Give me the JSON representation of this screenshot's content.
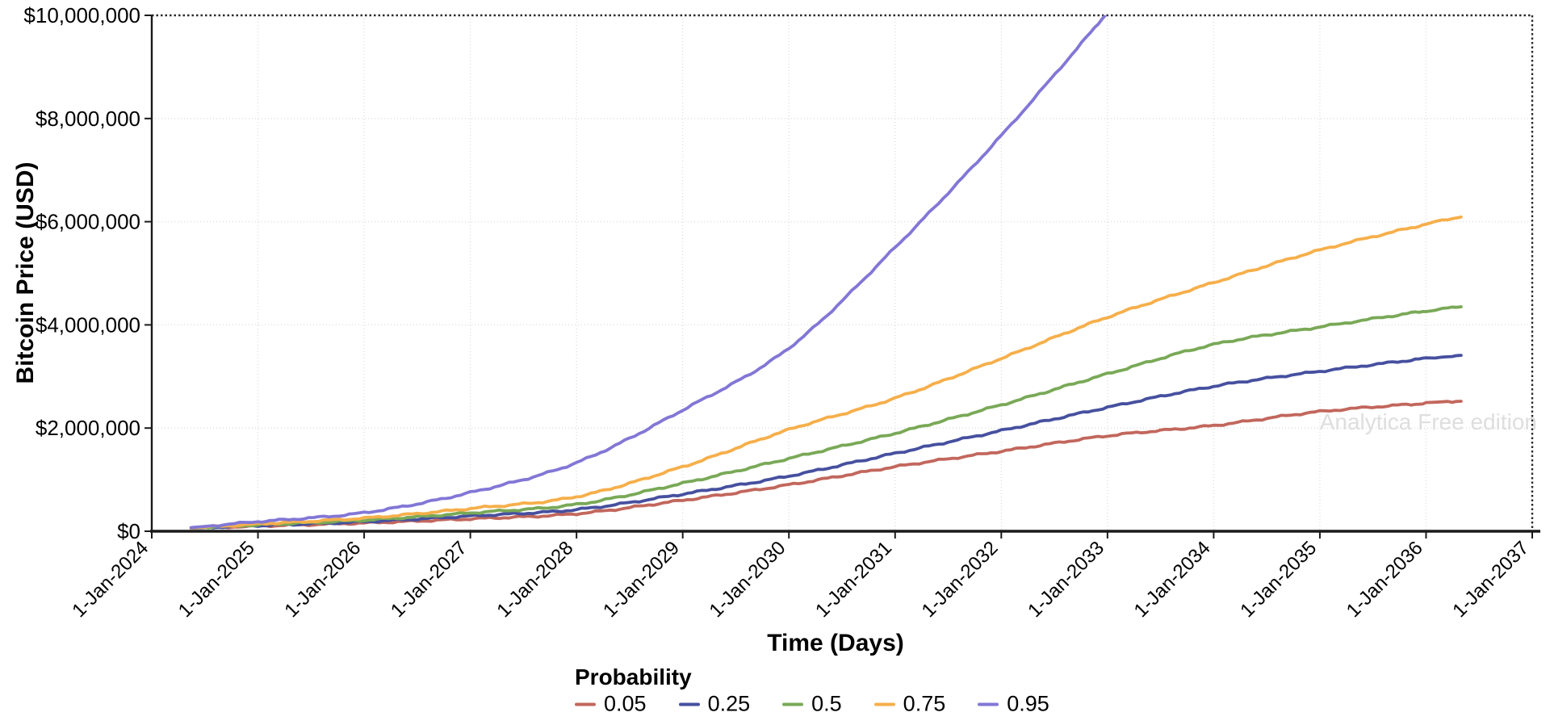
{
  "chart_data": {
    "type": "line",
    "title": "",
    "xlabel": "Time (Days)",
    "ylabel": "Bitcoin Price (USD)",
    "legend_title": "Probability",
    "legend_position": "bottom",
    "watermark": "Analytica Free edition",
    "grid": true,
    "xlim_years": [
      2024,
      2037
    ],
    "ylim": [
      0,
      10000000
    ],
    "x_ticks": [
      "1-Jan-2024",
      "1-Jan-2025",
      "1-Jan-2026",
      "1-Jan-2027",
      "1-Jan-2028",
      "1-Jan-2029",
      "1-Jan-2030",
      "1-Jan-2031",
      "1-Jan-2032",
      "1-Jan-2033",
      "1-Jan-2034",
      "1-Jan-2035",
      "1-Jan-2036",
      "1-Jan-2037"
    ],
    "y_ticks": [
      {
        "value": 0,
        "label": "$0"
      },
      {
        "value": 2000000,
        "label": "$2,000,000"
      },
      {
        "value": 4000000,
        "label": "$4,000,000"
      },
      {
        "value": 6000000,
        "label": "$6,000,000"
      },
      {
        "value": 8000000,
        "label": "$8,000,000"
      },
      {
        "value": 10000000,
        "label": "$10,000,000"
      }
    ],
    "colors": {
      "grid": "#dcdcdc",
      "axis": "#1a1a1a",
      "border_dotted": "#2a2a2a",
      "text": "#000000",
      "watermark": "#dedede"
    },
    "series": [
      {
        "name": "0.05",
        "color": "#c2675d",
        "points": [
          [
            2024.37,
            60000
          ],
          [
            2025,
            100000
          ],
          [
            2026,
            160000
          ],
          [
            2027,
            240000
          ],
          [
            2028,
            340000
          ],
          [
            2029,
            600000
          ],
          [
            2030,
            900000
          ],
          [
            2031,
            1250000
          ],
          [
            2032,
            1550000
          ],
          [
            2033,
            1850000
          ],
          [
            2034,
            2050000
          ],
          [
            2035,
            2320000
          ],
          [
            2036,
            2480000
          ],
          [
            2036.33,
            2520000
          ]
        ]
      },
      {
        "name": "0.25",
        "color": "#46509f",
        "points": [
          [
            2024.37,
            62000
          ],
          [
            2025,
            110000
          ],
          [
            2026,
            185000
          ],
          [
            2027,
            295000
          ],
          [
            2028,
            420000
          ],
          [
            2029,
            720000
          ],
          [
            2030,
            1070000
          ],
          [
            2031,
            1510000
          ],
          [
            2032,
            1950000
          ],
          [
            2033,
            2400000
          ],
          [
            2034,
            2810000
          ],
          [
            2035,
            3100000
          ],
          [
            2036,
            3350000
          ],
          [
            2036.33,
            3410000
          ]
        ]
      },
      {
        "name": "0.5",
        "color": "#79a957",
        "points": [
          [
            2024.37,
            64000
          ],
          [
            2025,
            125000
          ],
          [
            2026,
            215000
          ],
          [
            2027,
            355000
          ],
          [
            2028,
            520000
          ],
          [
            2029,
            930000
          ],
          [
            2030,
            1410000
          ],
          [
            2031,
            1900000
          ],
          [
            2032,
            2450000
          ],
          [
            2033,
            3050000
          ],
          [
            2034,
            3620000
          ],
          [
            2035,
            3960000
          ],
          [
            2036,
            4270000
          ],
          [
            2036.33,
            4350000
          ]
        ]
      },
      {
        "name": "0.75",
        "color": "#f6af4b",
        "points": [
          [
            2024.37,
            66000
          ],
          [
            2025,
            140000
          ],
          [
            2026,
            255000
          ],
          [
            2027,
            440000
          ],
          [
            2028,
            670000
          ],
          [
            2029,
            1250000
          ],
          [
            2030,
            1970000
          ],
          [
            2031,
            2580000
          ],
          [
            2032,
            3350000
          ],
          [
            2033,
            4150000
          ],
          [
            2034,
            4820000
          ],
          [
            2035,
            5450000
          ],
          [
            2036,
            5950000
          ],
          [
            2036.33,
            6090000
          ]
        ]
      },
      {
        "name": "0.95",
        "color": "#8277d6",
        "points": [
          [
            2024.37,
            70000
          ],
          [
            2025,
            185000
          ],
          [
            2026,
            360000
          ],
          [
            2027,
            750000
          ],
          [
            2028,
            1330000
          ],
          [
            2029,
            2350000
          ],
          [
            2030,
            3550000
          ],
          [
            2031,
            5500000
          ],
          [
            2032,
            7670000
          ],
          [
            2033,
            10050000
          ]
        ]
      }
    ]
  }
}
